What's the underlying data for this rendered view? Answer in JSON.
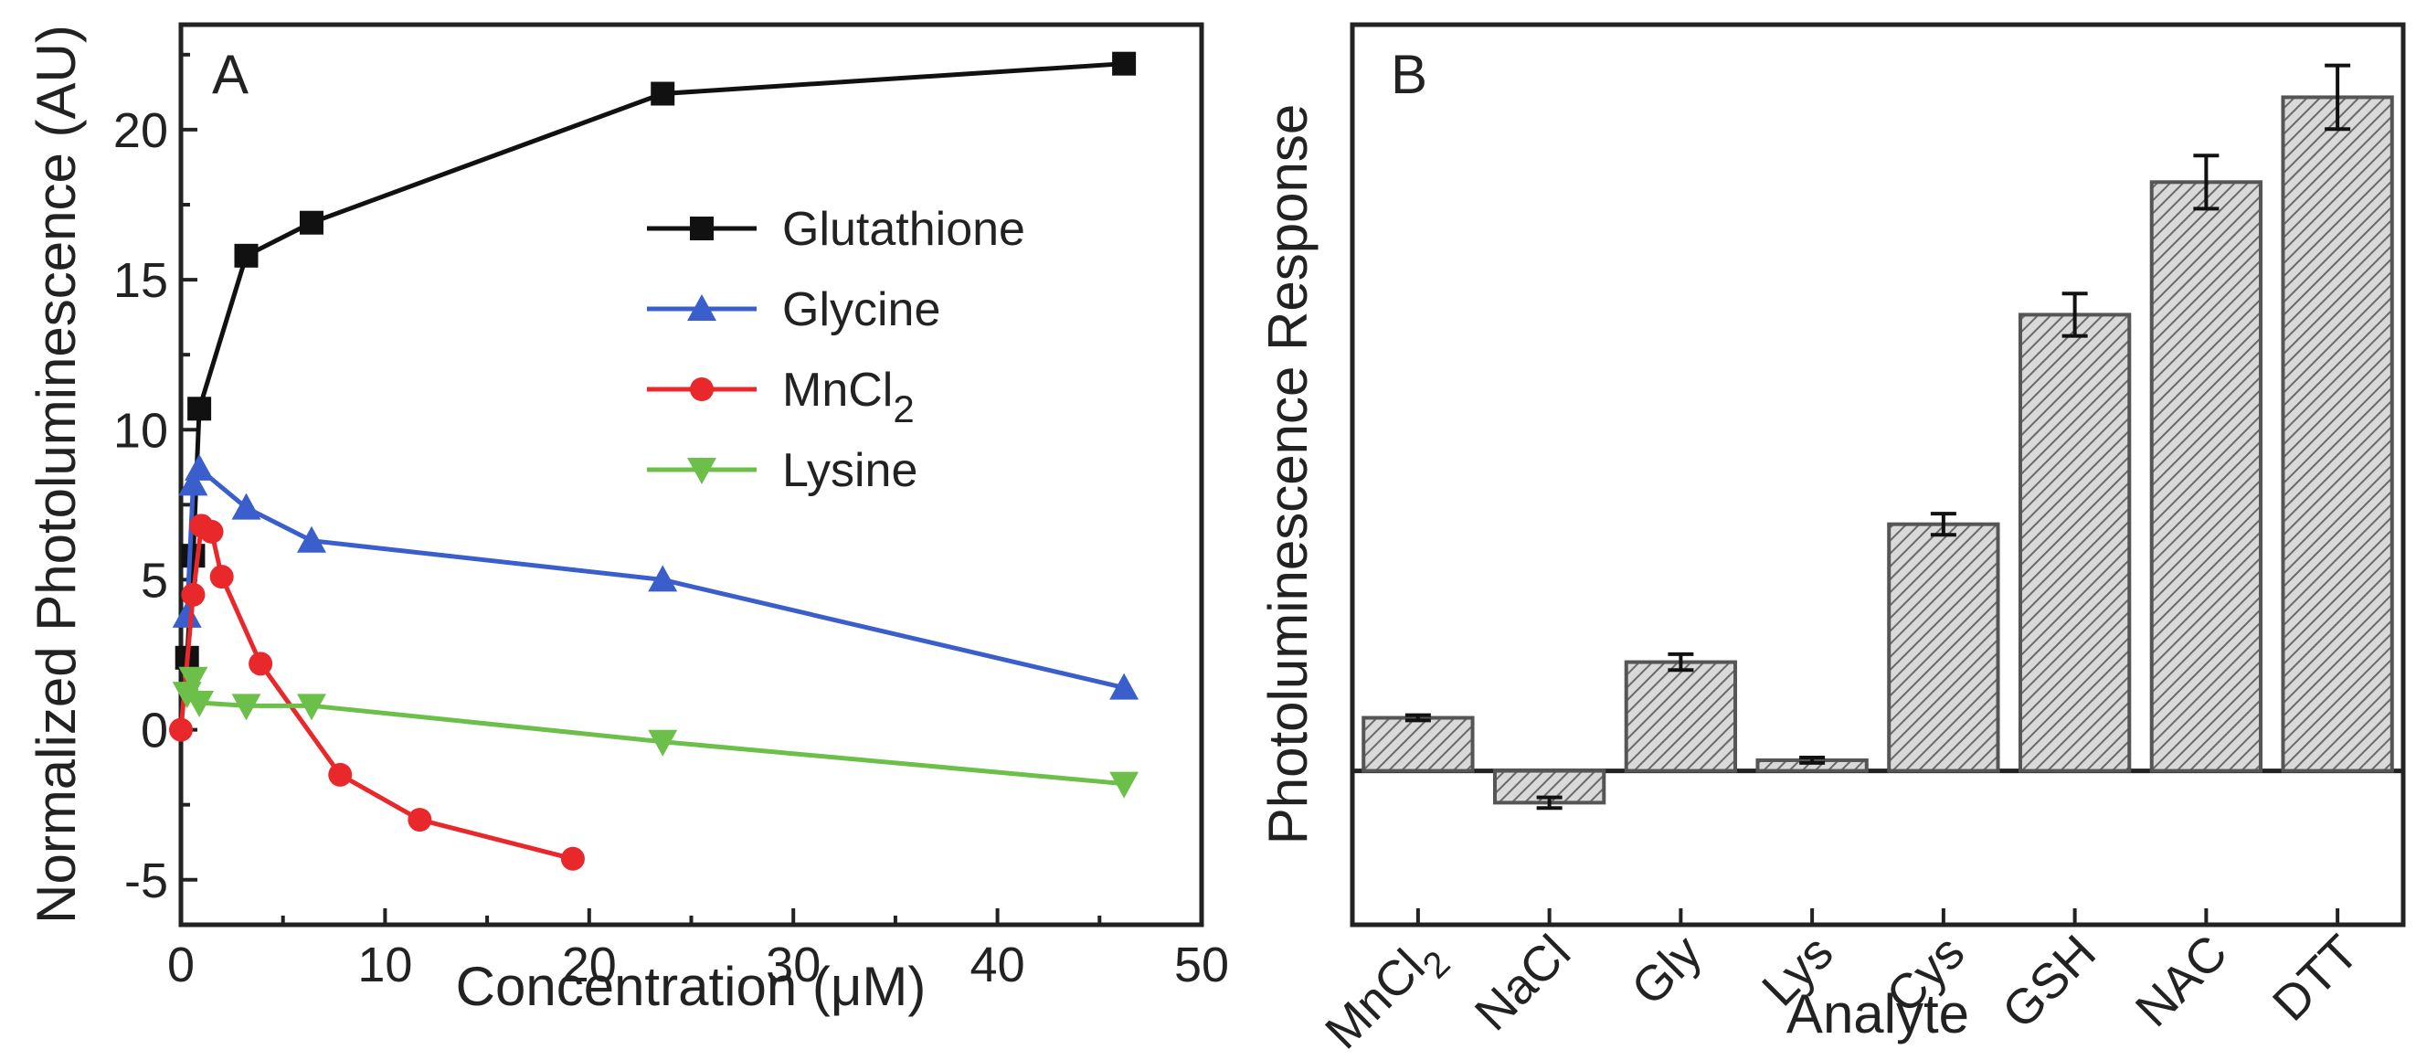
{
  "chart_data": [
    {
      "type": "line",
      "panel_label": "A",
      "xlabel": "Concentration (μM)",
      "ylabel": "Normalized Photoluminescence (AU)",
      "xlim": [
        0,
        50
      ],
      "ylim": [
        -6.5,
        23.5
      ],
      "xticks": [
        0,
        10,
        20,
        30,
        40,
        50
      ],
      "yticks": [
        -5,
        0,
        5,
        10,
        15,
        20
      ],
      "ytick_labels": [
        "-5",
        "0",
        "5",
        "10",
        "15",
        "20"
      ],
      "legend_position": "upper-middle",
      "series": [
        {
          "name": "Glutathione",
          "color": "#111111",
          "marker": "square",
          "x": [
            0.3,
            0.6,
            0.9,
            3.2,
            6.4,
            23.6,
            46.2
          ],
          "y": [
            2.4,
            5.8,
            10.7,
            15.8,
            16.9,
            21.2,
            22.2
          ]
        },
        {
          "name": "Glycine",
          "color": "#3a5fcd",
          "marker": "triangle-up",
          "x": [
            0.3,
            0.6,
            0.9,
            3.2,
            6.4,
            23.6,
            46.2
          ],
          "y": [
            3.8,
            8.2,
            8.7,
            7.4,
            6.3,
            5.0,
            1.4
          ]
        },
        {
          "name": "MnCl",
          "name_subscript": "2",
          "color": "#e8282b",
          "marker": "circle",
          "x": [
            0.0,
            0.6,
            1.0,
            1.5,
            2.0,
            3.9,
            7.8,
            11.7,
            19.2
          ],
          "y": [
            0.0,
            4.5,
            6.8,
            6.6,
            5.1,
            2.2,
            -1.5,
            -3.0,
            -4.3
          ]
        },
        {
          "name": "Lysine",
          "color": "#6cc04a",
          "marker": "triangle-down",
          "x": [
            0.3,
            0.6,
            0.9,
            3.2,
            6.4,
            23.6,
            46.2
          ],
          "y": [
            1.2,
            1.7,
            0.9,
            0.8,
            0.8,
            -0.4,
            -1.8
          ]
        }
      ]
    },
    {
      "type": "bar",
      "panel_label": "B",
      "xlabel": "Analyte",
      "ylabel": "Photoluminescence Response",
      "yaxis_ticks_visible": false,
      "ylim": [
        -1.6,
        27
      ],
      "categories": [
        {
          "label": "MnCl",
          "subscript": "2"
        },
        {
          "label": "NaCl",
          "subscript": ""
        },
        {
          "label": "Gly",
          "subscript": ""
        },
        {
          "label": "Lys",
          "subscript": ""
        },
        {
          "label": "Cys",
          "subscript": ""
        },
        {
          "label": "GSH",
          "subscript": ""
        },
        {
          "label": "NAC",
          "subscript": ""
        },
        {
          "label": "DTT",
          "subscript": ""
        }
      ],
      "values": [
        2.0,
        -1.2,
        4.1,
        0.4,
        9.3,
        17.2,
        22.2,
        25.4
      ],
      "errors": [
        0.1,
        0.2,
        0.3,
        0.1,
        0.4,
        0.8,
        1.0,
        1.2
      ],
      "bar_pattern": "diagonal-hatch"
    }
  ]
}
